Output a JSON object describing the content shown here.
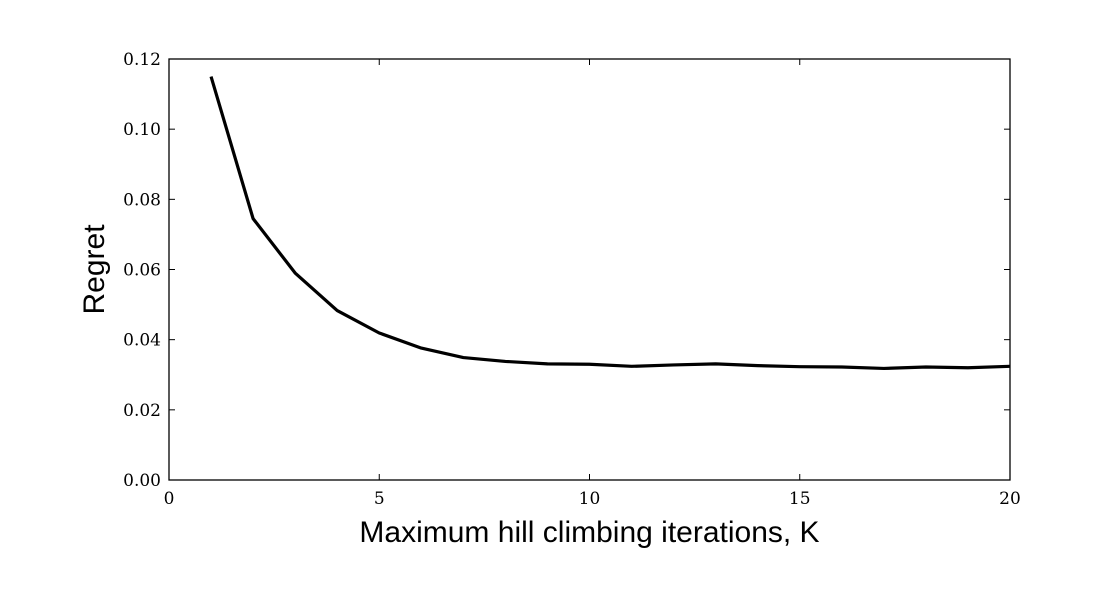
{
  "chart_data": {
    "type": "line",
    "title": "",
    "xlabel": "Maximum hill climbing iterations, K",
    "ylabel": "Regret",
    "xlim": [
      0,
      20
    ],
    "ylim": [
      0.0,
      0.12
    ],
    "x_ticks": [
      0,
      5,
      10,
      15,
      20
    ],
    "x_tick_labels": [
      "0",
      "5",
      "10",
      "15",
      "20"
    ],
    "y_ticks": [
      0.0,
      0.02,
      0.04,
      0.06,
      0.08,
      0.1,
      0.12
    ],
    "y_tick_labels": [
      "0.00",
      "0.02",
      "0.04",
      "0.06",
      "0.08",
      "0.10",
      "0.12"
    ],
    "grid": false,
    "legend": null,
    "series": [
      {
        "color": "#000000",
        "x": [
          1,
          2,
          3,
          4,
          5,
          6,
          7,
          8,
          9,
          10,
          11,
          12,
          13,
          14,
          15,
          16,
          17,
          18,
          19,
          20
        ],
        "y": [
          0.115,
          0.0745,
          0.059,
          0.0483,
          0.0419,
          0.0376,
          0.0349,
          0.0338,
          0.0331,
          0.033,
          0.0324,
          0.0328,
          0.0331,
          0.0326,
          0.0323,
          0.0322,
          0.0318,
          0.0322,
          0.032,
          0.0324
        ]
      }
    ]
  }
}
